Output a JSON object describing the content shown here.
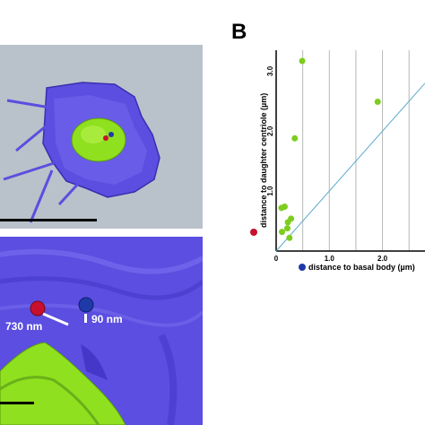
{
  "panel_letter": "B",
  "micrograph": {
    "annotation_left": "730 nm",
    "annotation_right": "90 nm"
  },
  "colors": {
    "points": "#7dcd1e",
    "line": "#5aa9c8",
    "grid": "#b8b8b8",
    "red_marker": "#c8102e",
    "blue_marker": "#1e3aa8",
    "cell": "#5b4ee0",
    "nucleus": "#8fe01e",
    "background_top": "#b9c2ca"
  },
  "chart_data": {
    "type": "scatter",
    "xlabel": "distance to basal body (µm)",
    "ylabel": "distance to daughter centriole (µm)",
    "xlim": [
      0,
      2.8
    ],
    "ylim": [
      0,
      3.35
    ],
    "x_ticks": [
      "0",
      "1.0",
      "2.0"
    ],
    "y_ticks": [
      "1.0",
      "2.0",
      "3.0"
    ],
    "grid": "vertical",
    "reference_line": {
      "x": [
        0,
        2.8
      ],
      "y": [
        0,
        2.8
      ]
    },
    "points": [
      {
        "x": 0.49,
        "y": 3.17
      },
      {
        "x": 1.91,
        "y": 2.49
      },
      {
        "x": 0.35,
        "y": 1.88
      },
      {
        "x": 0.1,
        "y": 0.72
      },
      {
        "x": 0.16,
        "y": 0.74
      },
      {
        "x": 0.28,
        "y": 0.54
      },
      {
        "x": 0.22,
        "y": 0.48
      },
      {
        "x": 0.21,
        "y": 0.38
      },
      {
        "x": 0.11,
        "y": 0.32
      },
      {
        "x": 0.25,
        "y": 0.22
      }
    ]
  }
}
